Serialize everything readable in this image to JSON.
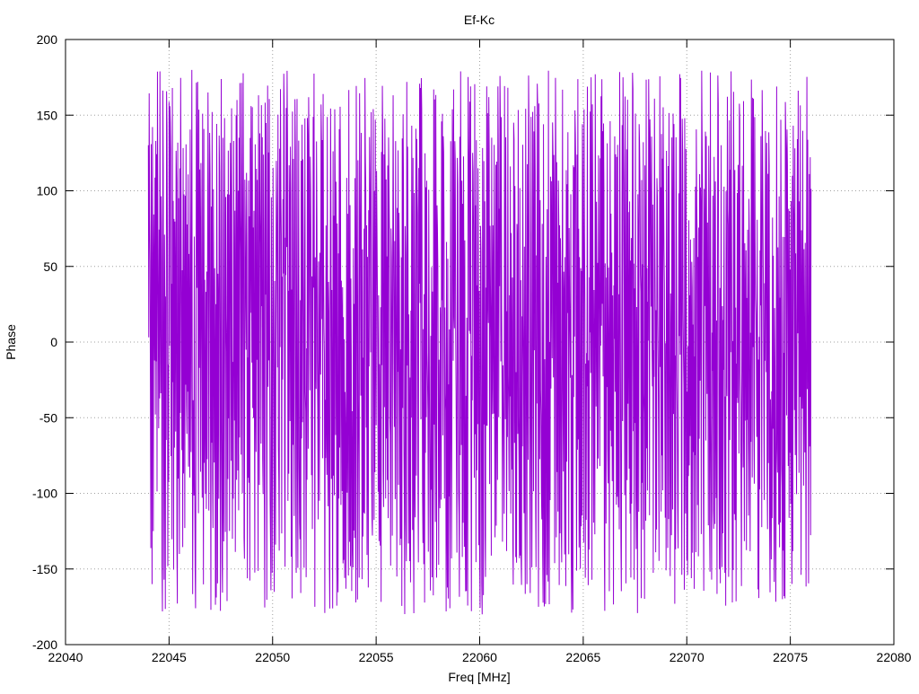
{
  "chart_data": {
    "type": "line",
    "title": "Ef-Kc",
    "xlabel": "Freq [MHz]",
    "ylabel": "Phase",
    "xlim": [
      22040,
      22080
    ],
    "ylim": [
      -200,
      200
    ],
    "xticks": [
      22040,
      22045,
      22050,
      22055,
      22060,
      22065,
      22070,
      22075,
      22080
    ],
    "yticks": [
      -200,
      -150,
      -100,
      -50,
      0,
      50,
      100,
      150,
      200
    ],
    "grid": true,
    "series": [
      {
        "color": "#9400d3",
        "x_start": 22044,
        "x_end": 22076,
        "x_step": 0.02,
        "y_range": [
          -180,
          180
        ],
        "sample_x": [
          22044.0,
          22044.2,
          22044.4,
          22044.6,
          22045.0,
          22046.5,
          22050.0,
          22055.0,
          22058.0,
          22060.0,
          22065.0,
          22070.0,
          22075.0,
          22076.0
        ],
        "sample_y": [
          148,
          -145,
          168,
          -180,
          76,
          178,
          -160,
          178,
          179,
          -170,
          -178,
          178,
          -180,
          179
        ]
      }
    ]
  }
}
